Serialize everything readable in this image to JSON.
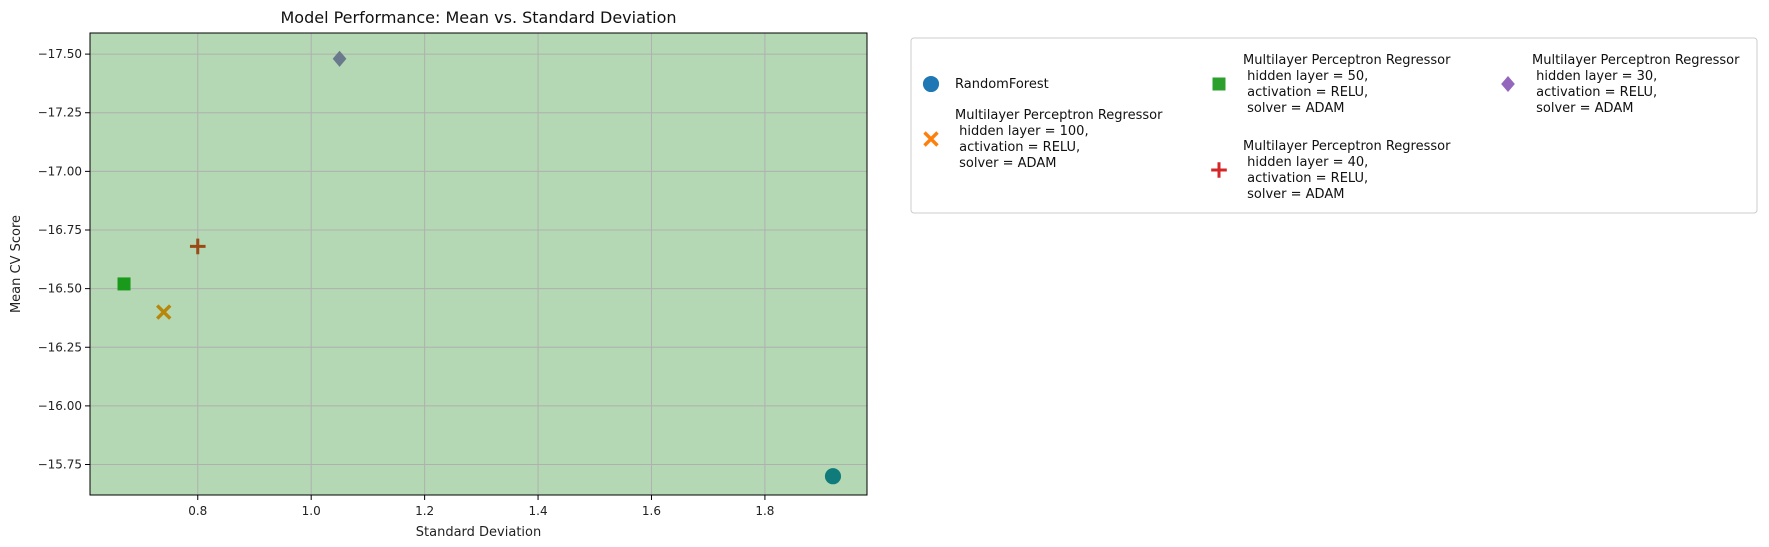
{
  "chart_data": {
    "type": "scatter",
    "title": "Model Performance: Mean vs. Standard Deviation",
    "xlabel": "Standard Deviation",
    "ylabel": "Mean CV Score",
    "x_ticks": [
      0.8,
      1.0,
      1.2,
      1.4,
      1.6,
      1.8
    ],
    "x_tick_labels": [
      "0.8",
      "1.0",
      "1.2",
      "1.4",
      "1.6",
      "1.8"
    ],
    "y_ticks": [
      -17.5,
      -17.25,
      -17.0,
      -16.75,
      -16.5,
      -16.25,
      -16.0,
      -15.75
    ],
    "y_tick_labels": [
      "−17.50",
      "−17.25",
      "−17.00",
      "−16.75",
      "−16.50",
      "−16.25",
      "−16.00",
      "−15.75"
    ],
    "xlim": [
      0.61,
      1.98
    ],
    "ylim": [
      -17.59,
      -15.62
    ],
    "y_inverted": true,
    "grid": true,
    "plot_background": "#b3d8b3",
    "legend_placement": "outside-right, 3 columns",
    "series": [
      {
        "name": "RandomForest",
        "marker": "circle",
        "legend_color": "#1f77b4",
        "point_color": "#0f7b7b",
        "points": [
          {
            "x": 1.92,
            "y": -15.7
          }
        ]
      },
      {
        "name": "Multilayer Perceptron Regressor\n hidden layer = 100,\n activation = RELU,\n solver = ADAM",
        "marker": "x",
        "legend_color": "#ff7f0e",
        "point_color": "#b8860b",
        "points": [
          {
            "x": 0.74,
            "y": -16.4
          }
        ]
      },
      {
        "name": "Multilayer Perceptron Regressor\n hidden layer = 50,\n activation = RELU,\n solver = ADAM",
        "marker": "square",
        "legend_color": "#2ca02c",
        "point_color": "#1a9a1a",
        "points": [
          {
            "x": 0.67,
            "y": -16.52
          }
        ]
      },
      {
        "name": "Multilayer Perceptron Regressor\n hidden layer = 40,\n activation = RELU,\n solver = ADAM",
        "marker": "plus",
        "legend_color": "#d62728",
        "point_color": "#9a4a14",
        "points": [
          {
            "x": 0.8,
            "y": -16.68
          }
        ]
      },
      {
        "name": "Multilayer Perceptron Regressor\n hidden layer = 30,\n activation = RELU,\n solver = ADAM",
        "marker": "diamond",
        "legend_color": "#9467bd",
        "point_color": "#6a7a8c",
        "points": [
          {
            "x": 1.05,
            "y": -17.48
          }
        ]
      }
    ]
  }
}
